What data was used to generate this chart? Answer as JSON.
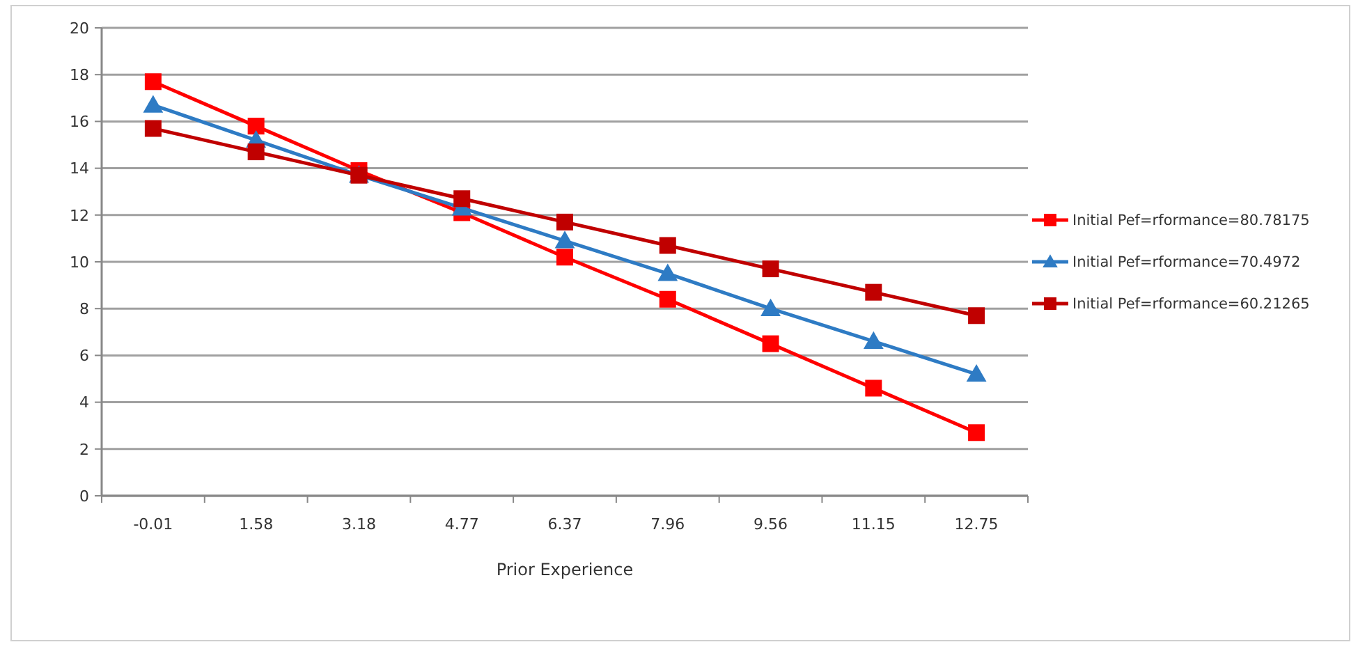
{
  "chart_data": {
    "type": "line",
    "xlabel": "Prior Experience",
    "categories": [
      "-0.01",
      "1.58",
      "3.18",
      "4.77",
      "6.37",
      "7.96",
      "9.56",
      "11.15",
      "12.75"
    ],
    "ylim": [
      0,
      20
    ],
    "yticks": [
      0,
      2,
      4,
      6,
      8,
      10,
      12,
      14,
      16,
      18,
      20
    ],
    "grid": "y",
    "legend": "right",
    "series": [
      {
        "name": "Initial Pef=rformance=80.78175",
        "color": "#ff0000",
        "marker": "square",
        "values": [
          17.7,
          15.8,
          13.9,
          12.1,
          10.2,
          8.4,
          6.5,
          4.6,
          2.7
        ]
      },
      {
        "name": "Initial Pef=rformance=70.4972",
        "color": "#2e7bc4",
        "marker": "triangle",
        "values": [
          16.7,
          15.2,
          13.7,
          12.3,
          10.9,
          9.5,
          8.0,
          6.6,
          5.2
        ]
      },
      {
        "name": "Initial Pef=rformance=60.21265",
        "color": "#c00000",
        "marker": "square",
        "values": [
          15.7,
          14.7,
          13.7,
          12.7,
          11.7,
          10.7,
          9.7,
          8.7,
          7.7
        ]
      }
    ]
  }
}
